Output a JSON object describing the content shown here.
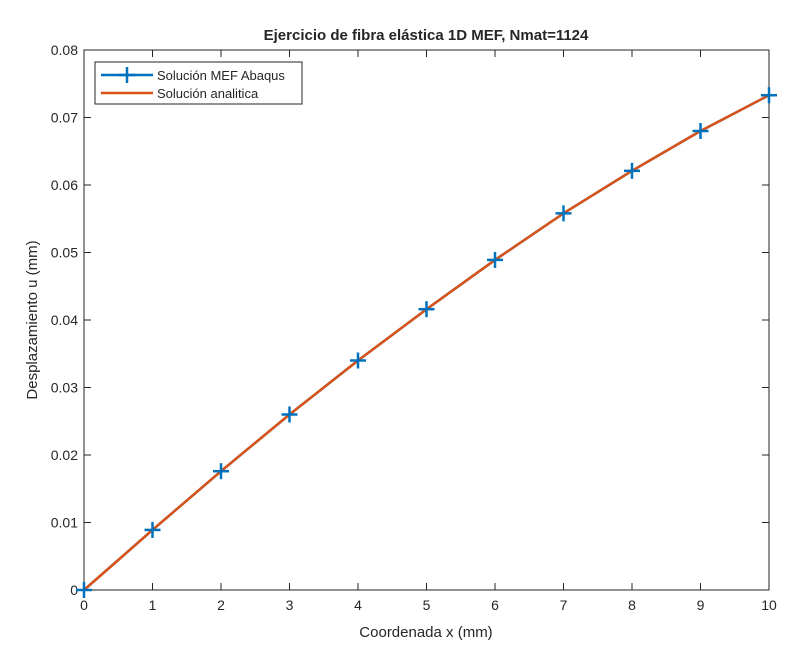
{
  "chart_data": {
    "type": "line",
    "title": "Ejercicio de fibra elástica 1D MEF, Nmat=1124",
    "xlabel": "Coordenada x (mm)",
    "ylabel": "Desplazamiento u (mm)",
    "xlim": [
      0,
      10
    ],
    "ylim": [
      0,
      0.08
    ],
    "x_ticks": [
      "0",
      "1",
      "2",
      "3",
      "4",
      "5",
      "6",
      "7",
      "8",
      "9",
      "10"
    ],
    "y_ticks": [
      "0",
      "0.01",
      "0.02",
      "0.03",
      "0.04",
      "0.05",
      "0.06",
      "0.07",
      "0.08"
    ],
    "grid": false,
    "legend_position": "top-left",
    "series": [
      {
        "name": "Solución MEF Abaqus",
        "color": "#0072BD",
        "marker": "plus",
        "x": [
          0,
          1,
          2,
          3,
          4,
          5,
          6,
          7,
          8,
          9,
          10
        ],
        "y": [
          0,
          0.0089,
          0.0176,
          0.026,
          0.034,
          0.0416,
          0.0489,
          0.0558,
          0.0621,
          0.068,
          0.0733
        ]
      },
      {
        "name": "Solución analitica",
        "color": "#D95319",
        "marker": "none",
        "x": [
          0,
          1,
          2,
          3,
          4,
          5,
          6,
          7,
          8,
          9,
          10
        ],
        "y": [
          0,
          0.0089,
          0.0176,
          0.026,
          0.034,
          0.0416,
          0.0489,
          0.0558,
          0.0621,
          0.068,
          0.0733
        ]
      }
    ]
  }
}
